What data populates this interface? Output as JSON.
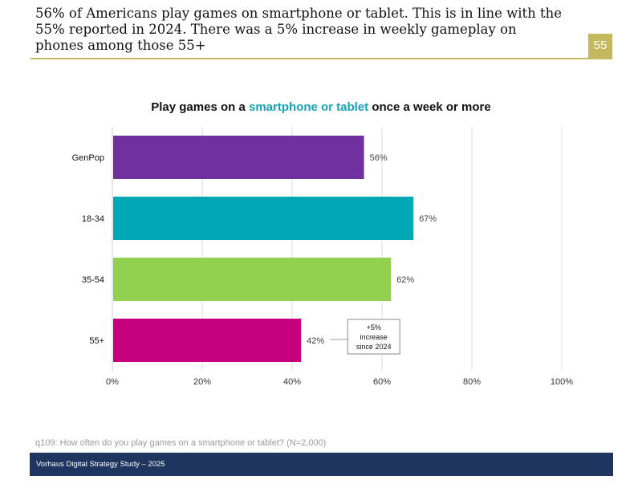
{
  "header": {
    "headline": "56% of Americans play games on smartphone or tablet. This is in line with the 55% reported in 2024. There was a 5% increase in weekly gameplay on phones among those 55+",
    "page_number": "55"
  },
  "chart_data": {
    "type": "bar",
    "orientation": "horizontal",
    "title": "Play games on a smartphone or tablet once a week or more",
    "title_parts": {
      "before": "Play games on a ",
      "highlight": "smartphone or tablet",
      "after": " once a week or more"
    },
    "categories": [
      "GenPop",
      "18-34",
      "35-54",
      "55+"
    ],
    "values": [
      56,
      67,
      62,
      42
    ],
    "value_labels": [
      "56%",
      "67%",
      "62%",
      "42%"
    ],
    "colors": [
      "#7030a0",
      "#00a8b5",
      "#92d050",
      "#c5007f"
    ],
    "xlim": [
      0,
      100
    ],
    "xticks": [
      0,
      20,
      40,
      60,
      80,
      100
    ],
    "xtick_labels": [
      "0%",
      "20%",
      "40%",
      "60%",
      "80%",
      "100%"
    ],
    "grid": true,
    "xlabel": "",
    "ylabel": "",
    "annotation": {
      "category": "55+",
      "lines": [
        "+5%",
        "increase",
        "since 2024"
      ]
    }
  },
  "footnote": "q109: How often do you play games on a smartphone or tablet? (N=2,000)",
  "footer": {
    "text": "Vorhaus Digital Strategy Study – 2025"
  }
}
